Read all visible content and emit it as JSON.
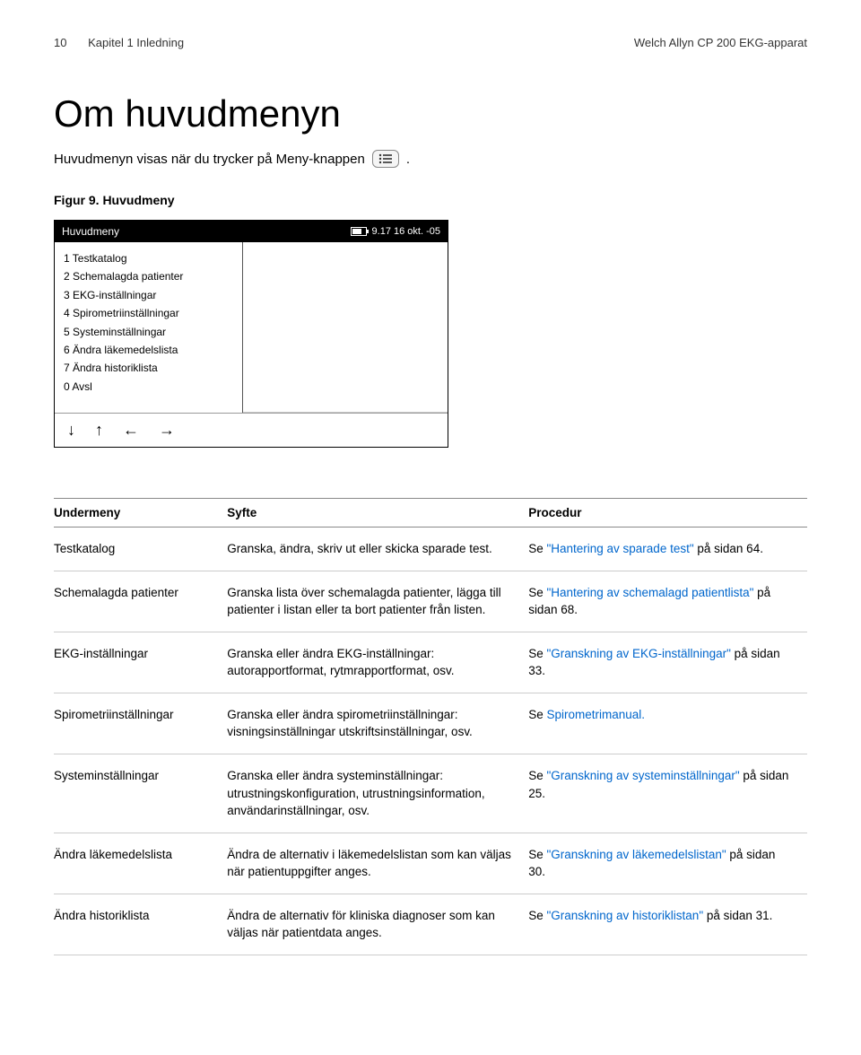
{
  "header": {
    "page_number": "10",
    "chapter": "Kapitel 1   Inledning",
    "product": "Welch Allyn CP 200 EKG-apparat"
  },
  "main_title": "Om huvudmenyn",
  "subtitle": "Huvudmenyn visas när du trycker på Meny-knappen",
  "figure_label": "Figur 9.   Huvudmeny",
  "screenshot": {
    "title": "Huvudmeny",
    "time": "9.17 16 okt. -05",
    "menu_items": [
      "1 Testkatalog",
      "2 Schemalagda patienter",
      "3 EKG-inställningar",
      "4 Spirometriinställningar",
      "5 Systeminställningar",
      "6 Ändra läkemedelslista",
      "7 Ändra historiklista",
      "0 Avsl"
    ],
    "arrows": [
      "↓",
      "↑",
      "←",
      "→"
    ]
  },
  "table": {
    "headers": [
      "Undermeny",
      "Syfte",
      "Procedur"
    ],
    "rows": [
      {
        "menu": "Testkatalog",
        "purpose": "Granska, ändra, skriv ut eller skicka sparade test.",
        "procedure_prefix": "Se ",
        "procedure_link": "\"Hantering av sparade test\"",
        "procedure_suffix": " på sidan 64."
      },
      {
        "menu": "Schemalagda patienter",
        "purpose": "Granska lista över schemalagda patienter, lägga till patienter i listan eller ta bort patienter från listen.",
        "procedure_prefix": "Se ",
        "procedure_link": "\"Hantering av schemalagd patientlista\"",
        "procedure_suffix": " på sidan 68."
      },
      {
        "menu": "EKG-inställningar",
        "purpose": "Granska eller ändra EKG-inställningar: autorapportformat, rytmrapportformat, osv.",
        "procedure_prefix": "Se ",
        "procedure_link": "\"Granskning av EKG-inställningar\"",
        "procedure_suffix": " på sidan 33."
      },
      {
        "menu": "Spirometriinställningar",
        "purpose": "Granska eller ändra spirometriinställningar: visningsinställningar utskriftsinställningar, osv.",
        "procedure_prefix": "Se ",
        "procedure_link": "Spirometrimanual.",
        "procedure_suffix": ""
      },
      {
        "menu": "Systeminställningar",
        "purpose": "Granska eller ändra systeminställningar: utrustningskonfiguration, utrustningsinformation, användarinställningar, osv.",
        "procedure_prefix": "Se ",
        "procedure_link": "\"Granskning av systeminställningar\"",
        "procedure_suffix": " på sidan 25."
      },
      {
        "menu": "Ändra läkemedelslista",
        "purpose": "Ändra de alternativ i läkemedelslistan som kan väljas när patientuppgifter anges.",
        "procedure_prefix": "Se ",
        "procedure_link": "\"Granskning av läkemedelslistan\"",
        "procedure_suffix": " på sidan 30."
      },
      {
        "menu": "Ändra historiklista",
        "purpose": "Ändra de alternativ för kliniska diagnoser som kan väljas när patientdata anges.",
        "procedure_prefix": "Se ",
        "procedure_link": "\"Granskning av historiklistan\"",
        "procedure_suffix": " på sidan 31."
      }
    ]
  }
}
